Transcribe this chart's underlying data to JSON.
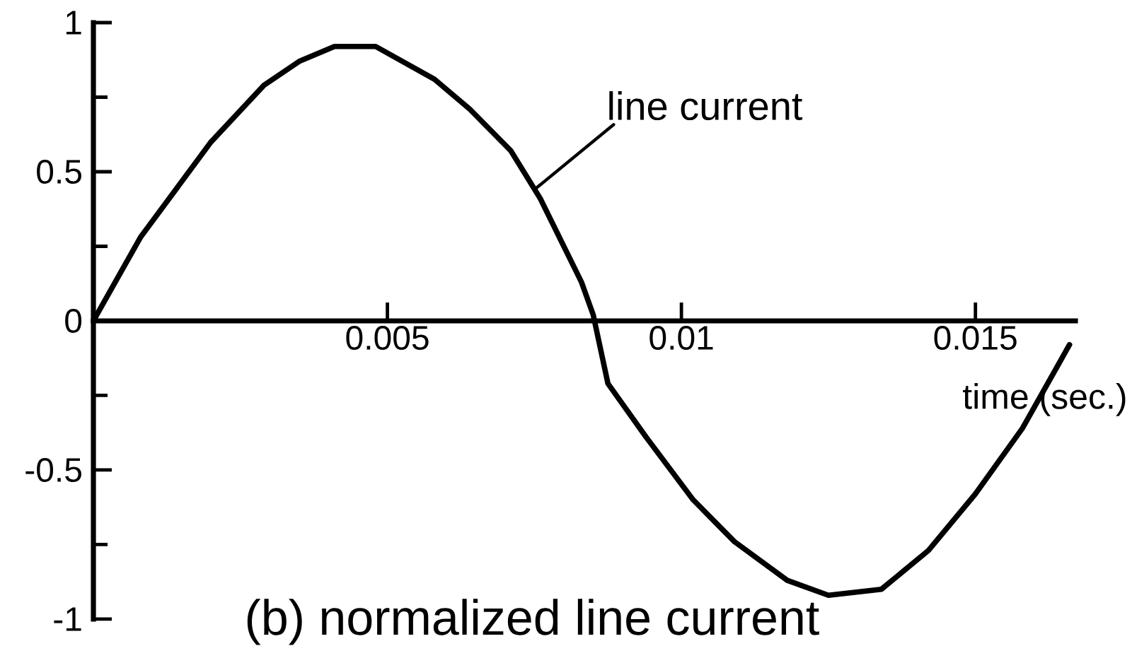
{
  "chart_data": {
    "type": "line",
    "title": "(b) normalized line current",
    "xlabel": "time (sec.)",
    "annotations": [
      {
        "text": "line current",
        "x": 0.0075,
        "y": 0.44
      }
    ],
    "x": [
      0,
      0.0008,
      0.002,
      0.0029,
      0.0035,
      0.0041,
      0.0048,
      0.0058,
      0.0064,
      0.0071,
      0.0076,
      0.0083,
      0.0085,
      0.00875,
      0.0094,
      0.0102,
      0.0109,
      0.0118,
      0.0125,
      0.0134,
      0.0142,
      0.015,
      0.0158,
      0.0166
    ],
    "series": [
      {
        "color": "#000000",
        "values": [
          0,
          0.28,
          0.6,
          0.79,
          0.87,
          0.92,
          0.92,
          0.81,
          0.71,
          0.57,
          0.41,
          0.13,
          0.02,
          -0.21,
          -0.39,
          -0.6,
          -0.74,
          -0.87,
          -0.92,
          -0.9,
          -0.77,
          -0.58,
          -0.36,
          -0.08
        ]
      }
    ],
    "xlim": [
      0,
      0.0167
    ],
    "ylim": [
      -1,
      1
    ],
    "xticks": [
      0.005,
      0.01,
      0.015
    ],
    "yticks": [
      -1,
      {
        "value": -0.75,
        "label": null
      },
      -0.5,
      {
        "value": -0.25,
        "label": null
      },
      0,
      {
        "value": 0.25,
        "label": null
      },
      0.5,
      {
        "value": 0.75,
        "label": null
      },
      1
    ]
  }
}
